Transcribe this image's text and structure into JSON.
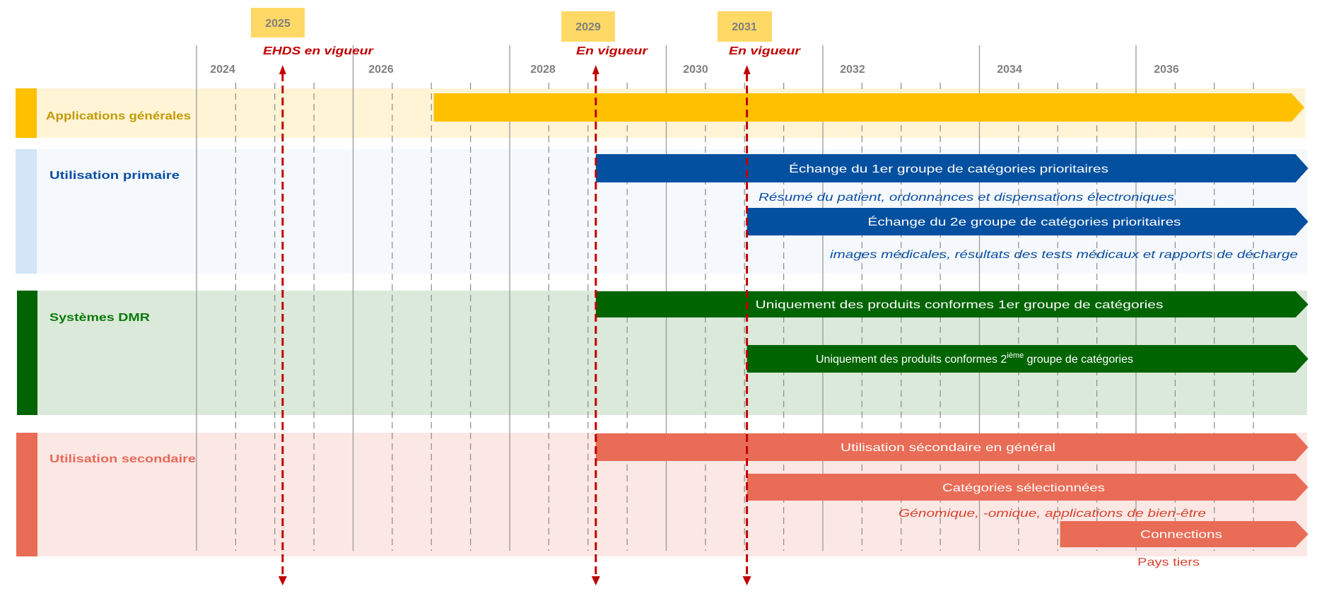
{
  "colors": {
    "apps": "#FFC000",
    "apps_bg": "#FFF4D6",
    "apps_text": "#C39A00",
    "primary": "#0450A0",
    "primary_bg": "#F5F9FE",
    "primary_side": "#D2E6F8",
    "primary_text": "#0B4EA2",
    "dmr": "#006400",
    "dmr_bg": "#DBE9DB",
    "dmr_text": "#0A7A0A",
    "secondary": "#E96C56",
    "secondary_bg": "#FBE7E4",
    "secondary_text": "#E8695A",
    "marker": "#C00000",
    "marker_box": "#FFD966"
  },
  "chart_data": {
    "type": "timeline",
    "x_range": [
      2024,
      2037.5
    ],
    "year_labels": [
      "2024",
      "2026",
      "2028",
      "2030",
      "2032",
      "2034",
      "2036"
    ],
    "grid": "solid every 2 years, dashed every half year",
    "milestones": [
      {
        "year_label": "2025",
        "text": "EHDS en vigueur",
        "year": 2025.1
      },
      {
        "year_label": "2029",
        "text": "En vigueur",
        "year": 2029.1
      },
      {
        "year_label": "2031",
        "text": "En vigueur",
        "year": 2031.03
      }
    ],
    "bands": [
      {
        "label": "Applications générales"
      },
      {
        "label": "Utilisation primaire"
      },
      {
        "label": "Systèmes DMR"
      },
      {
        "label": "Utilisation secondaire"
      }
    ],
    "bars": [
      {
        "band": "Applications générales",
        "label": "",
        "start": 2027.03,
        "end": 2038.15
      },
      {
        "band": "Utilisation primaire",
        "label": "Échange du 1er groupe de catégories prioritaires",
        "start": 2029.1,
        "end": 2038.2
      },
      {
        "band": "Utilisation primaire",
        "label": "Échange du 2e groupe de catégories prioritaires",
        "start": 2031.03,
        "end": 2038.2
      },
      {
        "band": "Systèmes DMR",
        "label": "Uniquement des produits conformes 1er groupe de catégories",
        "start": 2029.1,
        "end": 2038.2
      },
      {
        "band": "Systèmes DMR",
        "label_parts": [
          "Uniquement des produits conformes 2",
          "ième",
          " groupe de catégories"
        ],
        "start": 2031.03,
        "end": 2038.2
      },
      {
        "band": "Utilisation secondaire",
        "label": "Utilisation sécondaire en général",
        "start": 2029.1,
        "end": 2038.2
      },
      {
        "band": "Utilisation secondaire",
        "label": "Catégories sélectionnées",
        "start": 2031.03,
        "end": 2038.2
      },
      {
        "band": "Utilisation secondaire",
        "label": "Connections",
        "start": 2035.03,
        "end": 2038.2
      }
    ],
    "notes": [
      "Résumé du patient, ordonnances et dispensations électroniques",
      "images médicales, résultats des tests médicaux et rapports de décharge",
      "Génomique, -omique, applications de bien-être",
      "Pays tiers"
    ]
  }
}
